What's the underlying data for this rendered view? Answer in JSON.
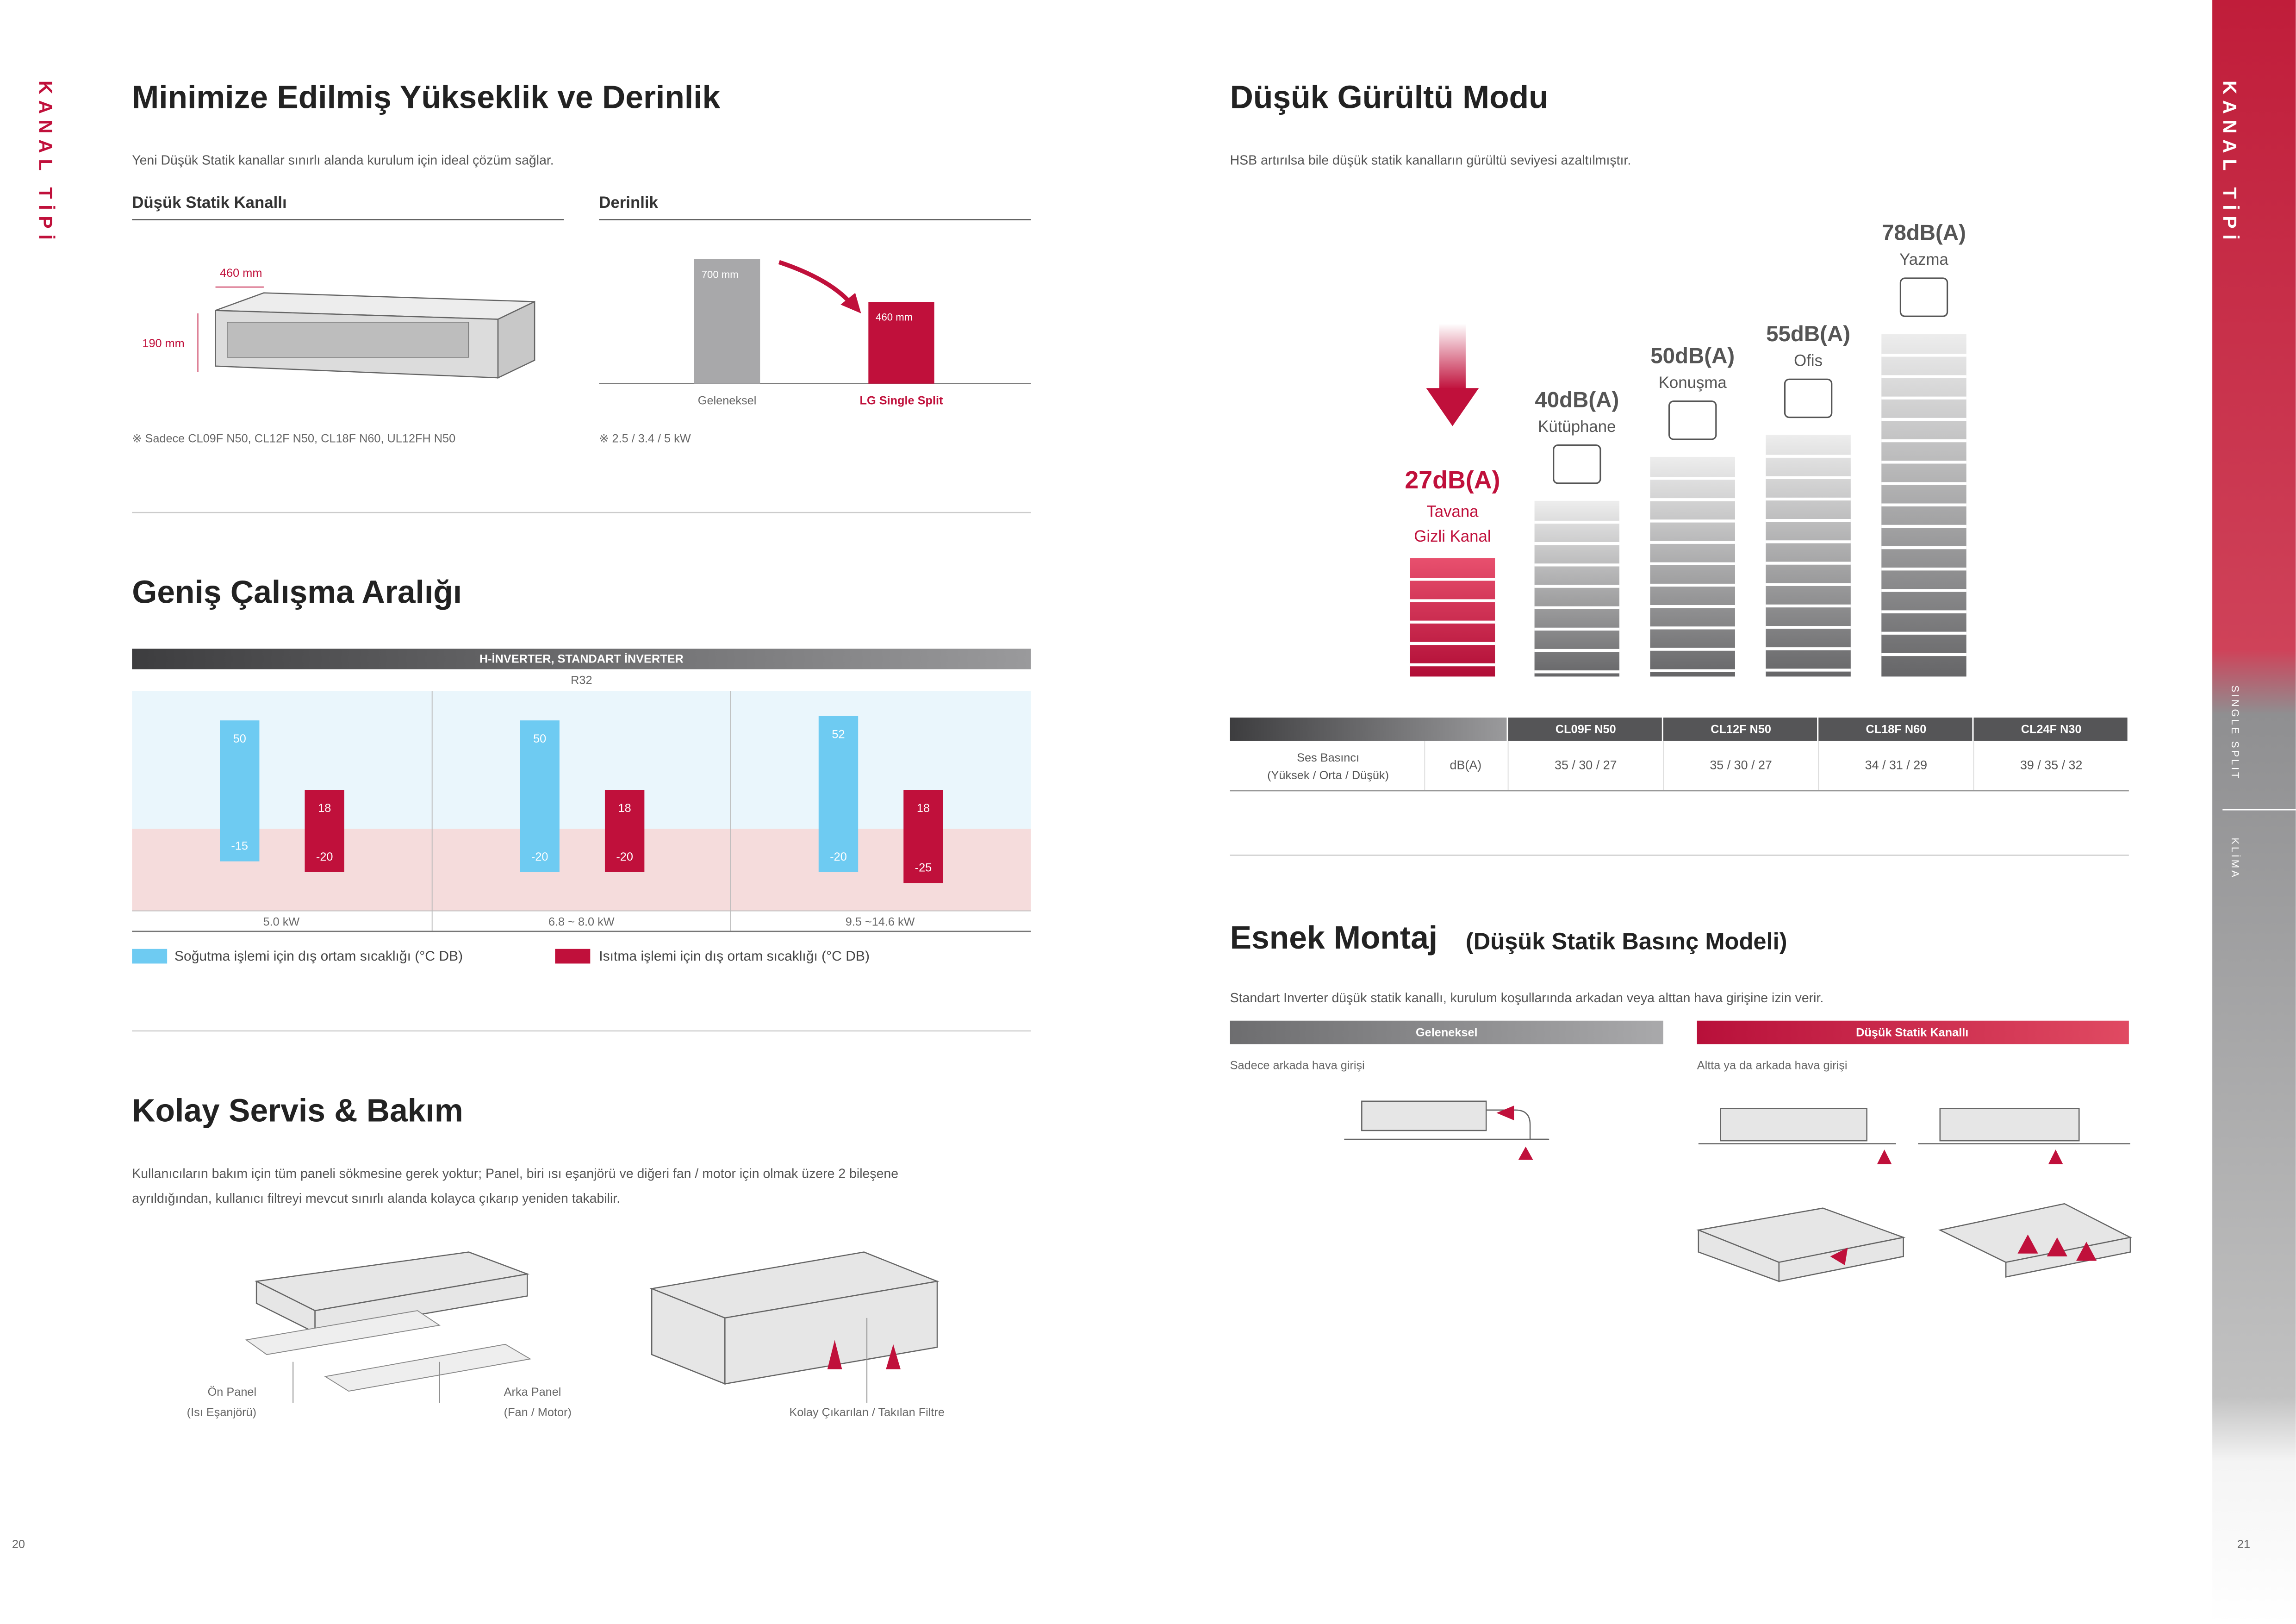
{
  "side_label": "KANAL TİPİ",
  "right_tab": {
    "title": "KANAL TİPİ",
    "items": [
      "SINGLE SPLIT",
      "KLİMA"
    ]
  },
  "page_numbers": [
    "20",
    "21"
  ],
  "minimize": {
    "title": "Minimize Edilmiş Yükseklik ve Derinlik",
    "text": "Yeni Düşük Statik kanallar sınırlı alanda kurulum için ideal çözüm sağlar.",
    "left": {
      "heading": "Düşük Statik Kanallı",
      "width_label": "460 mm",
      "height_label": "190 mm",
      "note": "※ Sadece CL09F N50, CL12F N50, CL18F N60, UL12FH N50"
    },
    "right": {
      "heading": "Derinlik",
      "bars": [
        {
          "label": "Geleneksel",
          "value": 700,
          "value_label": "700 mm",
          "color": "#a8a8aa"
        },
        {
          "label": "LG Single Split",
          "value": 460,
          "value_label": "460 mm",
          "color": "#c0103b"
        }
      ],
      "note": "※ 2.5 / 3.4 / 5 kW"
    }
  },
  "range": {
    "title": "Geniş Çalışma Aralığı",
    "header": "H-İNVERTER, STANDART İNVERTER",
    "refrigerant": "R32",
    "groups": [
      {
        "capacity": "5.0 kW",
        "cooling": [
          50,
          -15
        ],
        "heating": [
          18,
          -20
        ]
      },
      {
        "capacity": "6.8 ~ 8.0 kW",
        "cooling": [
          50,
          -20
        ],
        "heating": [
          18,
          -20
        ]
      },
      {
        "capacity": "9.5 ~14.6 kW",
        "cooling": [
          52,
          -20
        ],
        "heating": [
          18,
          -25
        ]
      }
    ],
    "legend": [
      {
        "name": "Soğutma işlemi için dış ortam sıcaklığı (°C DB)",
        "color": "#6ecbf2"
      },
      {
        "name": "Isıtma işlemi için dış ortam sıcaklığı (°C DB)",
        "color": "#c0103b"
      }
    ]
  },
  "service": {
    "title": "Kolay Servis & Bakım",
    "text": [
      "Kullanıcıların bakım için tüm paneli sökmesine gerek yoktur; Panel, biri ısı eşanjörü ve diğeri fan / motor için olmak üzere 2 bileşene",
      "ayrıldığından, kullanıcı filtreyi mevcut sınırlı alanda kolayca çıkarıp yeniden takabilir."
    ],
    "front_panel": [
      "Ön Panel",
      "(Isı Eşanjörü)"
    ],
    "rear_panel": [
      "Arka Panel",
      "(Fan / Motor)"
    ],
    "filter": "Kolay Çıkarılan / Takılan Filtre"
  },
  "noise": {
    "title": "Düşük Gürültü Modu",
    "text": "HSB artırılsa bile düşük statik kanalların gürültü seviyesi azaltılmıştır.",
    "levels": [
      {
        "value": 27,
        "label": "27dB(A)",
        "name": [
          "Tavana",
          "Gizli Kanal"
        ]
      },
      {
        "value": 40,
        "label": "40dB(A)",
        "name": [
          "Kütüphane"
        ]
      },
      {
        "value": 50,
        "label": "50dB(A)",
        "name": [
          "Konuşma"
        ]
      },
      {
        "value": 55,
        "label": "55dB(A)",
        "name": [
          "Ofis"
        ]
      },
      {
        "value": 78,
        "label": "78dB(A)",
        "name": [
          "Yazma"
        ]
      }
    ]
  },
  "table": {
    "models": [
      "CL09F N50",
      "CL12F N50",
      "CL18F N60",
      "CL24F N30"
    ],
    "row_label": [
      "Ses Basıncı",
      "(Yüksek / Orta / Düşük)"
    ],
    "unit": "dB(A)",
    "values": [
      "35 / 30 / 27",
      "35 / 30 / 27",
      "34 / 31 / 29",
      "39 / 35 / 32"
    ]
  },
  "mount": {
    "title": "Esnek Montaj",
    "subtitle": "(Düşük Statik Basınç Modeli)",
    "text": "Standart Inverter düşük statik kanallı, kurulum koşullarında arkadan veya alttan hava girişine izin verir.",
    "columns": [
      {
        "heading": "Geleneksel",
        "caption": "Sadece arkada hava girişi"
      },
      {
        "heading": "Düşük Statik Kanallı",
        "caption": "Altta ya da arkada hava girişi"
      }
    ]
  }
}
